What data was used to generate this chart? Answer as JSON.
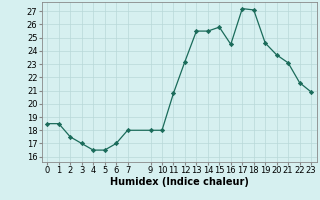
{
  "x": [
    0,
    1,
    2,
    3,
    4,
    5,
    6,
    7,
    9,
    10,
    11,
    12,
    13,
    14,
    15,
    16,
    17,
    18,
    19,
    20,
    21,
    22,
    23
  ],
  "y": [
    18.5,
    18.5,
    17.5,
    17.0,
    16.5,
    16.5,
    17.0,
    18.0,
    18.0,
    18.0,
    20.8,
    23.2,
    25.5,
    25.5,
    25.8,
    24.5,
    27.2,
    27.1,
    24.6,
    23.7,
    23.1,
    21.6,
    20.9
  ],
  "line_color": "#1a6b5a",
  "marker": "D",
  "marker_size": 2.2,
  "bg_color": "#d6f0f0",
  "grid_color": "#b8d8d8",
  "xlabel": "Humidex (Indice chaleur)",
  "ylabel_ticks": [
    16,
    17,
    18,
    19,
    20,
    21,
    22,
    23,
    24,
    25,
    26,
    27
  ],
  "ylim": [
    15.6,
    27.7
  ],
  "xlim": [
    -0.5,
    23.5
  ],
  "xticks": [
    0,
    1,
    2,
    3,
    4,
    5,
    6,
    7,
    9,
    10,
    11,
    12,
    13,
    14,
    15,
    16,
    17,
    18,
    19,
    20,
    21,
    22,
    23
  ],
  "xtick_labels": [
    "0",
    "1",
    "2",
    "3",
    "4",
    "5",
    "6",
    "7",
    "9",
    "10",
    "11",
    "12",
    "13",
    "14",
    "15",
    "16",
    "17",
    "18",
    "19",
    "20",
    "21",
    "22",
    "23"
  ],
  "xlabel_fontsize": 7,
  "tick_fontsize": 6
}
